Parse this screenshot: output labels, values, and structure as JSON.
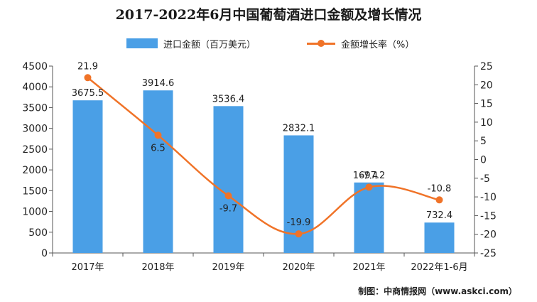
{
  "title": "2017-2022年6月中国葡萄酒进口金额及增长情况",
  "legend": {
    "bar_label": "进口金额（百万美元）",
    "line_label": "金额增长率（%）"
  },
  "source": "制图：中商情报网（www.askci.com）",
  "colors": {
    "bar": "#4a9fe6",
    "line": "#f07328",
    "axis": "#555555",
    "grid": "#e3e3e3"
  },
  "chart_data": {
    "type": "bar",
    "categories": [
      "2017年",
      "2018年",
      "2019年",
      "2020年",
      "2021年",
      "2022年1-6月"
    ],
    "series": [
      {
        "name": "进口金额（百万美元）",
        "type": "bar",
        "axis": "left",
        "values": [
          3675.5,
          3914.6,
          3536.4,
          2832.1,
          1697.2,
          732.4
        ],
        "labels": [
          "3675.5",
          "3914.6",
          "3536.4",
          "2832.1",
          "1697.2",
          "732.4"
        ]
      },
      {
        "name": "金额增长率（%）",
        "type": "line",
        "axis": "right",
        "values": [
          21.9,
          6.5,
          -9.7,
          -19.9,
          -7.4,
          -10.8
        ],
        "labels": [
          "21.9",
          "6.5",
          "-9.7",
          "-19.9",
          "-7.4",
          "-10.8"
        ]
      }
    ],
    "y_left": {
      "lim": [
        0,
        4500
      ],
      "ticks": [
        0,
        500,
        1000,
        1500,
        2000,
        2500,
        3000,
        3500,
        4000,
        4500
      ],
      "tick_labels": [
        "0",
        "500",
        "1000",
        "1500",
        "2000",
        "2500",
        "3000",
        "3500",
        "4000",
        "4500"
      ]
    },
    "y_right": {
      "lim": [
        -25,
        25
      ],
      "ticks": [
        -25,
        -20,
        -15,
        -10,
        -5,
        0,
        5,
        10,
        15,
        20,
        25
      ],
      "tick_labels": [
        "-25",
        "-20",
        "-15",
        "-10",
        "-5",
        "0",
        "5",
        "10",
        "15",
        "20",
        "25"
      ]
    },
    "grid": false,
    "legend_position": "top-center"
  }
}
